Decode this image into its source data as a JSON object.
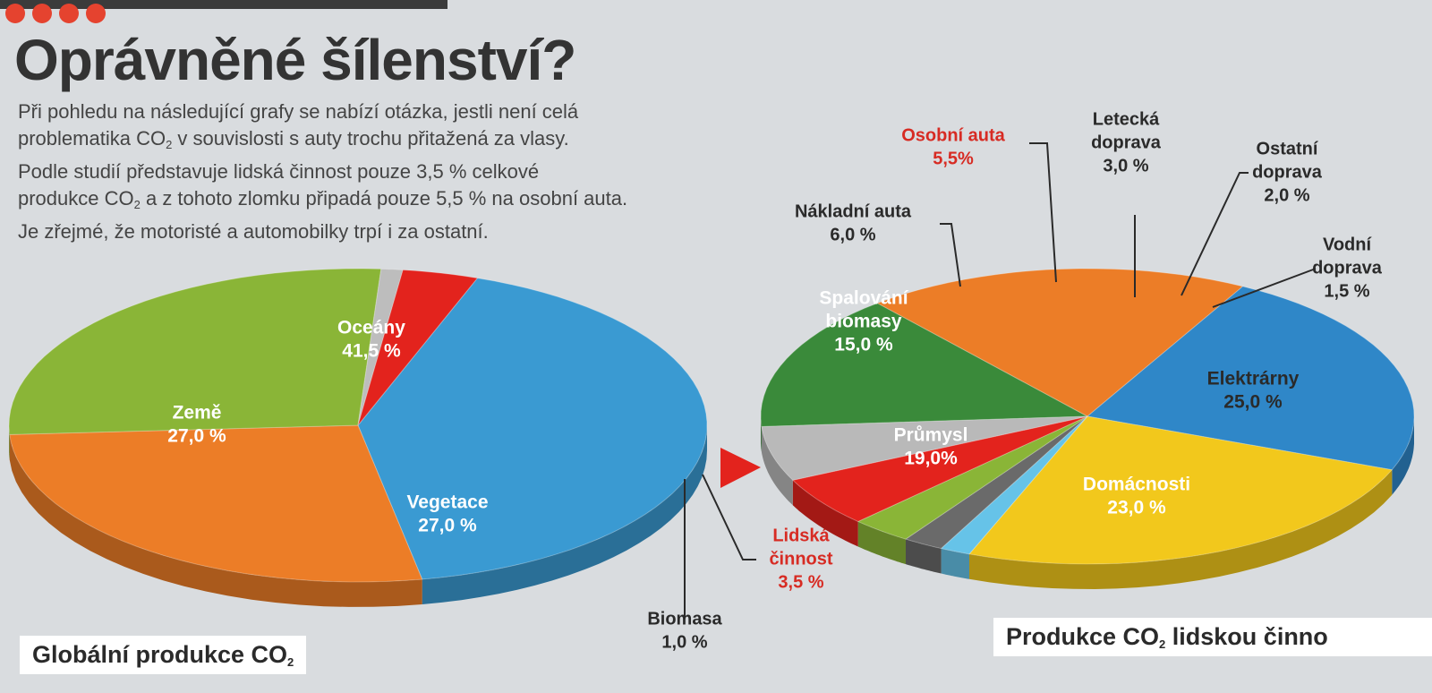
{
  "page": {
    "title": "Oprávněné šílenství?",
    "intro": [
      "Při pohledu na následující grafy se nabízí otázka, jestli není celá",
      "problematika CO2 v souvislosti s auty trochu přitažená za vlasy.",
      "Podle studií představuje lidská činnost pouze 3,5 % celkové",
      "produkce CO2 a z tohoto zlomku připadá pouze 5,5 % na osobní auta.",
      "Je zřejmé, že motoristé a automobilky trpí i za ostatní."
    ]
  },
  "chart_data": [
    {
      "type": "pie",
      "title": "Globální produkce CO2",
      "slices": [
        {
          "label": "Oceány",
          "value": 41.5,
          "display": "41,5 %",
          "color": "#3a9ad2",
          "lines": [
            "Oceány",
            "41,5 %"
          ]
        },
        {
          "label": "Země",
          "value": 27.0,
          "display": "27,0 %",
          "color": "#ec7d27",
          "lines": [
            "Země",
            "27,0 %"
          ]
        },
        {
          "label": "Vegetace",
          "value": 27.0,
          "display": "27,0 %",
          "color": "#8ab537",
          "lines": [
            "Vegetace",
            "27,0 %"
          ]
        },
        {
          "label": "Biomasa",
          "value": 1.0,
          "display": "1,0 %",
          "color": "#bdbdbd",
          "lines": [
            "Biomasa",
            "1,0 %"
          ]
        },
        {
          "label": "Lidská činnost",
          "value": 3.5,
          "display": "3,5 %",
          "color": "#e3231d",
          "lines": [
            "Lidská",
            "činnost",
            "3,5 %"
          ]
        }
      ]
    },
    {
      "type": "pie",
      "title": "Produkce CO2 lidskou činno",
      "slices": [
        {
          "label": "Spalování biomasy",
          "value": 15.0,
          "display": "15,0 %",
          "color": "#3a8a3a",
          "lines": [
            "Spalování",
            "biomasy",
            "15,0 %"
          ]
        },
        {
          "label": "Průmysl",
          "value": 19.0,
          "display": "19,0%",
          "color": "#ec7d27",
          "lines": [
            "Průmysl",
            "19,0%"
          ]
        },
        {
          "label": "Domácnosti",
          "value": 23.0,
          "display": "23,0 %",
          "color": "#2f87c8",
          "lines": [
            "Domácnosti",
            "23,0 %"
          ]
        },
        {
          "label": "Elektrárny",
          "value": 25.0,
          "display": "25,0 %",
          "color": "#f2c81c",
          "lines": [
            "Elektrárny",
            "25,0 %"
          ]
        },
        {
          "label": "Vodní doprava",
          "value": 1.5,
          "display": "1,5 %",
          "color": "#66c3e8",
          "lines": [
            "Vodní",
            "doprava",
            "1,5 %"
          ]
        },
        {
          "label": "Ostatní doprava",
          "value": 2.0,
          "display": "2,0 %",
          "color": "#6a6a6a",
          "lines": [
            "Ostatní",
            "doprava",
            "2,0 %"
          ]
        },
        {
          "label": "Letecká doprava",
          "value": 3.0,
          "display": "3,0 %",
          "color": "#8ab537",
          "lines": [
            "Letecká",
            "doprava",
            "3,0 %"
          ]
        },
        {
          "label": "Osobní auta",
          "value": 5.5,
          "display": "5,5%",
          "color": "#e3231d",
          "lines": [
            "Osobní auta",
            "5,5%"
          ]
        },
        {
          "label": "Nákladní auta",
          "value": 6.0,
          "display": "6,0 %",
          "color": "#b9b9b9",
          "lines": [
            "Nákladní auta",
            "6,0 %"
          ]
        }
      ]
    }
  ]
}
